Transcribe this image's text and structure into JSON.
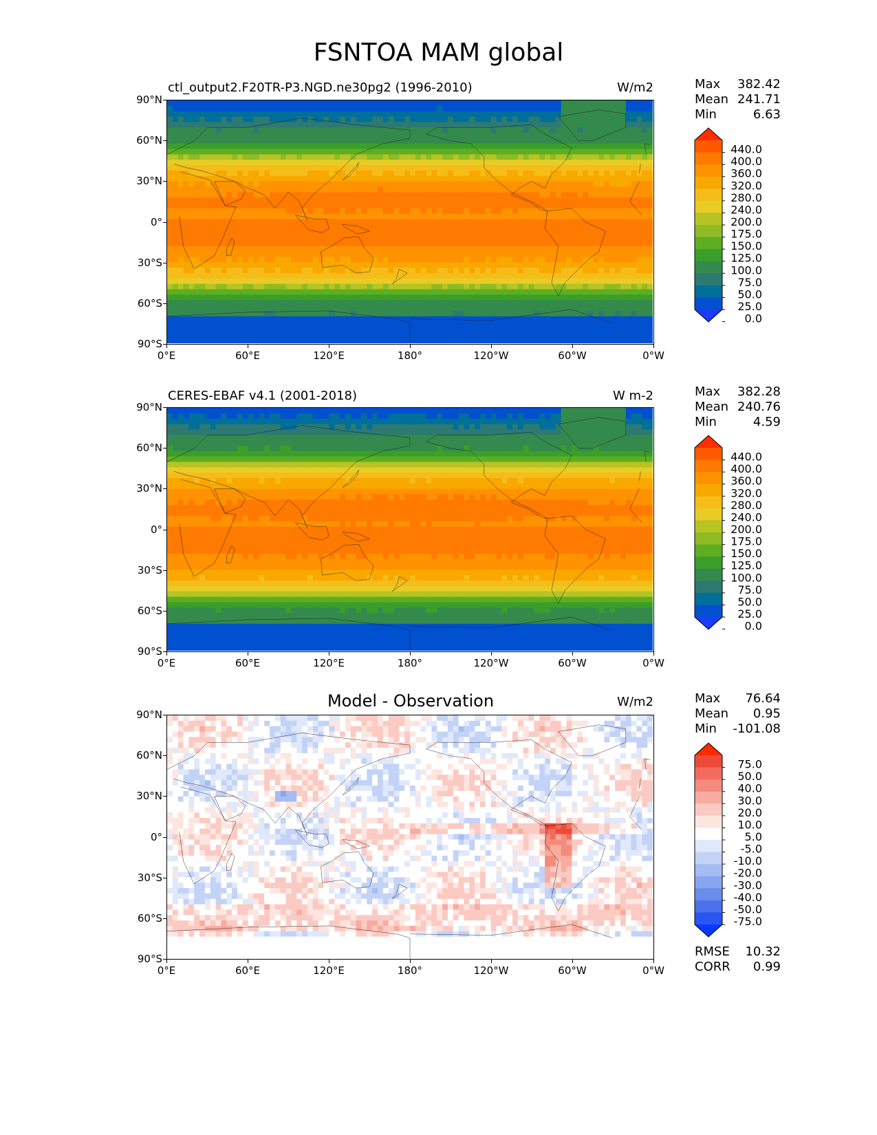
{
  "title": "FSNTOA MAM global",
  "panels": [
    {
      "id": "model",
      "title_left": "ctl_output2.F20TR-P3.NGD.ne30pg2 (1996-2010)",
      "title_center": "",
      "units": "W/m2",
      "stats": [
        {
          "label": "Max",
          "value": "382.42"
        },
        {
          "label": "Mean",
          "value": "241.71"
        },
        {
          "label": "Min",
          "value": "6.63"
        }
      ],
      "colorbar": {
        "levels": [
          "440.0",
          "400.0",
          "360.0",
          "320.0",
          "280.0",
          "240.0",
          "200.0",
          "175.0",
          "150.0",
          "125.0",
          "100.0",
          "75.0",
          "50.0",
          "25.0",
          "0.0"
        ],
        "colors": [
          "#ff2e00",
          "#ff5a00",
          "#ff7a00",
          "#ff9200",
          "#f9a800",
          "#f5bc1a",
          "#e8cc26",
          "#b8c324",
          "#8fbb25",
          "#5fae22",
          "#3a9f2a",
          "#348a4c",
          "#2c7a72",
          "#006f9a",
          "#0050d0",
          "#1a3cff"
        ]
      },
      "extra_stats": []
    },
    {
      "id": "obs",
      "title_left": "CERES-EBAF v4.1 (2001-2018)",
      "title_center": "",
      "units": "W m-2",
      "stats": [
        {
          "label": "Max",
          "value": "382.28"
        },
        {
          "label": "Mean",
          "value": "240.76"
        },
        {
          "label": "Min",
          "value": "4.59"
        }
      ],
      "colorbar": {
        "levels": [
          "440.0",
          "400.0",
          "360.0",
          "320.0",
          "280.0",
          "240.0",
          "200.0",
          "175.0",
          "150.0",
          "125.0",
          "100.0",
          "75.0",
          "50.0",
          "25.0",
          "0.0"
        ],
        "colors": [
          "#ff2e00",
          "#ff5a00",
          "#ff7a00",
          "#ff9200",
          "#f9a800",
          "#f5bc1a",
          "#e8cc26",
          "#b8c324",
          "#8fbb25",
          "#5fae22",
          "#3a9f2a",
          "#348a4c",
          "#2c7a72",
          "#006f9a",
          "#0050d0",
          "#1a3cff"
        ]
      },
      "extra_stats": []
    },
    {
      "id": "diff",
      "title_left": "",
      "title_center": "Model - Observation",
      "units": "W/m2",
      "stats": [
        {
          "label": "Max",
          "value": "76.64"
        },
        {
          "label": "Mean",
          "value": "0.95"
        },
        {
          "label": "Min",
          "value": "-101.08"
        }
      ],
      "colorbar": {
        "levels": [
          "75.0",
          "50.0",
          "40.0",
          "30.0",
          "20.0",
          "10.0",
          "5.0",
          "-5.0",
          "-10.0",
          "-20.0",
          "-30.0",
          "-40.0",
          "-50.0",
          "-75.0"
        ],
        "colors": [
          "#ff2a00",
          "#ee4a3a",
          "#f26b5c",
          "#f58b7d",
          "#f8ab9f",
          "#fbcac2",
          "#fde5e0",
          "#ffffff",
          "#e0e8fb",
          "#c3d2f7",
          "#a6bcf3",
          "#88a5ef",
          "#6a8ceb",
          "#4a70ea",
          "#2a55f0",
          "#0a38ff"
        ]
      },
      "extra_stats": [
        {
          "label": "RMSE",
          "value": "10.32"
        },
        {
          "label": "CORR",
          "value": "0.99"
        }
      ]
    }
  ],
  "axes": {
    "lat_ticks": [
      "90°N",
      "60°N",
      "30°N",
      "0°",
      "30°S",
      "60°S",
      "90°S"
    ],
    "lon_ticks": [
      "0°E",
      "60°E",
      "120°E",
      "180°",
      "120°W",
      "60°W",
      "0°W"
    ]
  }
}
